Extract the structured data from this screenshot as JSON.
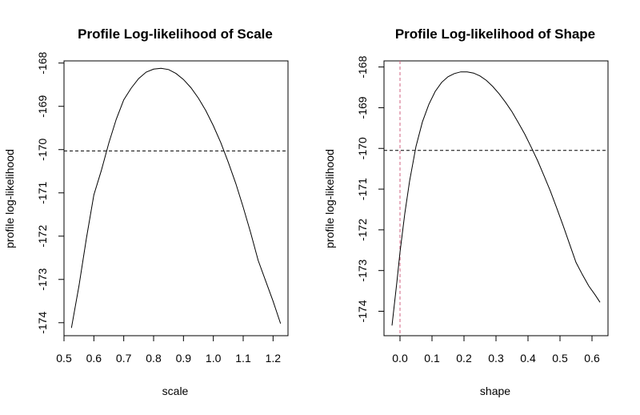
{
  "chart_data": [
    {
      "type": "line",
      "title": "Profile Log-likelihood of Scale",
      "xlabel": "scale",
      "ylabel": "profile log-likelihood",
      "xlim": [
        0.5,
        1.25
      ],
      "ylim": [
        -174.3,
        -167.95
      ],
      "x_ticks": [
        "0.5",
        "0.6",
        "0.7",
        "0.8",
        "0.9",
        "1.0",
        "1.1",
        "1.2"
      ],
      "y_ticks": [
        "-174",
        "-173",
        "-172",
        "-171",
        "-170",
        "-169",
        "-168"
      ],
      "series": [
        {
          "x": [
            0.525,
            0.55,
            0.575,
            0.6,
            0.625,
            0.65,
            0.675,
            0.7,
            0.725,
            0.75,
            0.775,
            0.8,
            0.825,
            0.85,
            0.875,
            0.9,
            0.925,
            0.95,
            0.975,
            1.0,
            1.025,
            1.05,
            1.075,
            1.1,
            1.125,
            1.15,
            1.175,
            1.2,
            1.225
          ],
          "y": [
            -174.12,
            -173.15,
            -172.05,
            -171.05,
            -170.48,
            -169.85,
            -169.3,
            -168.85,
            -168.58,
            -168.36,
            -168.21,
            -168.14,
            -168.12,
            -168.15,
            -168.24,
            -168.38,
            -168.57,
            -168.81,
            -169.1,
            -169.45,
            -169.84,
            -170.29,
            -170.78,
            -171.33,
            -171.92,
            -172.56,
            -173.03,
            -173.5,
            -174.02
          ]
        }
      ],
      "hlines": [
        -170.03
      ],
      "vlines": []
    },
    {
      "type": "line",
      "title": "Profile Log-likelihood of Shape",
      "xlabel": "shape",
      "ylabel": "profile log-likelihood",
      "xlim": [
        -0.05,
        0.65
      ],
      "ylim": [
        -174.6,
        -167.85
      ],
      "x_ticks": [
        "0.0",
        "0.1",
        "0.2",
        "0.3",
        "0.4",
        "0.5",
        "0.6"
      ],
      "y_ticks": [
        "-174",
        "-173",
        "-172",
        "-171",
        "-170",
        "-169",
        "-168"
      ],
      "series": [
        {
          "x": [
            -0.025,
            -0.01,
            0.0,
            0.015,
            0.03,
            0.05,
            0.07,
            0.09,
            0.11,
            0.13,
            0.15,
            0.17,
            0.19,
            0.21,
            0.23,
            0.25,
            0.27,
            0.29,
            0.31,
            0.33,
            0.35,
            0.37,
            0.39,
            0.41,
            0.43,
            0.45,
            0.47,
            0.49,
            0.51,
            0.53,
            0.55,
            0.57,
            0.59,
            0.61,
            0.625
          ],
          "y": [
            -174.35,
            -173.3,
            -172.55,
            -171.6,
            -170.8,
            -169.95,
            -169.35,
            -168.92,
            -168.6,
            -168.38,
            -168.24,
            -168.16,
            -168.12,
            -168.12,
            -168.15,
            -168.22,
            -168.33,
            -168.48,
            -168.66,
            -168.87,
            -169.1,
            -169.37,
            -169.65,
            -169.97,
            -170.3,
            -170.67,
            -171.05,
            -171.47,
            -171.9,
            -172.35,
            -172.8,
            -173.1,
            -173.38,
            -173.6,
            -173.78
          ]
        }
      ],
      "hlines": [
        -170.05
      ],
      "vlines": [
        0.0
      ],
      "vline_color": "#d06080"
    }
  ]
}
